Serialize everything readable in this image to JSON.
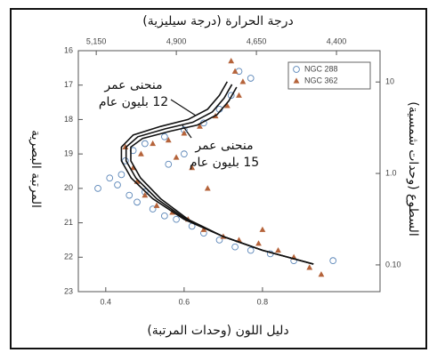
{
  "chart_data": {
    "type": "scatter",
    "title": "درجة الحرارة (درجة سيليزية)",
    "x_label": "دليل اللون (وحدات المرتبة)",
    "y_label": "المرتبة البصرية",
    "y2_label": "السطوع (وحدات شمسية)",
    "xlim": [
      0.33,
      1.1
    ],
    "xticks": [
      0.4,
      0.6,
      0.8
    ],
    "ylim": [
      16,
      23
    ],
    "y_inverted": true,
    "yticks": [
      16,
      17,
      18,
      19,
      20,
      21,
      22,
      23
    ],
    "x2lim": [
      5206,
      4264
    ],
    "x2ticks": [
      {
        "value": 5150,
        "label": "5,150"
      },
      {
        "value": 4900,
        "label": "4,900"
      },
      {
        "value": 4650,
        "label": "4,650"
      },
      {
        "value": 4400,
        "label": "4,400"
      }
    ],
    "y2lim": [
      0.051,
      22
    ],
    "y2_log": true,
    "y2ticks": [
      10,
      {
        "value": 1,
        "label": "1.0"
      },
      {
        "value": 0.1,
        "label": "0.10"
      }
    ],
    "series": [
      {
        "name": "NGC 288",
        "color": "#5b86b8",
        "marker": "circle",
        "x": [
          0.74,
          0.77,
          0.72,
          0.69,
          0.65,
          0.6,
          0.55,
          0.5,
          0.47,
          0.45,
          0.44,
          0.43,
          0.46,
          0.48,
          0.5,
          0.52,
          0.55,
          0.58,
          0.62,
          0.65,
          0.69,
          0.73,
          0.77,
          0.82,
          0.88,
          0.98,
          0.38,
          0.41,
          0.56,
          0.6
        ],
        "values": [
          16.6,
          16.8,
          17.3,
          17.7,
          18.1,
          18.3,
          18.5,
          18.7,
          18.9,
          19.2,
          19.6,
          19.9,
          20.2,
          20.4,
          20.1,
          20.6,
          20.8,
          20.9,
          21.1,
          21.3,
          21.5,
          21.7,
          21.8,
          21.9,
          22.1,
          22.1,
          20.0,
          19.7,
          19.3,
          19.0
        ]
      },
      {
        "name": "NGC 362",
        "color": "#b5633a",
        "marker": "triangle",
        "x": [
          0.72,
          0.73,
          0.75,
          0.74,
          0.71,
          0.68,
          0.64,
          0.6,
          0.56,
          0.52,
          0.49,
          0.47,
          0.48,
          0.5,
          0.53,
          0.57,
          0.61,
          0.65,
          0.7,
          0.74,
          0.79,
          0.84,
          0.88,
          0.92,
          0.95,
          0.62,
          0.66,
          0.58,
          0.45,
          0.8
        ],
        "values": [
          16.3,
          16.6,
          16.9,
          17.3,
          17.6,
          17.9,
          18.2,
          18.4,
          18.6,
          18.7,
          19.0,
          19.4,
          19.8,
          20.2,
          20.5,
          20.7,
          20.9,
          21.2,
          21.4,
          21.5,
          21.6,
          21.8,
          22.0,
          22.3,
          22.5,
          19.4,
          20.0,
          19.1,
          18.8,
          21.2
        ]
      }
    ],
    "curves": [
      {
        "color": "#111111",
        "x": [
          0.93,
          0.8,
          0.7,
          0.6,
          0.52,
          0.465,
          0.44,
          0.44,
          0.47,
          0.54,
          0.61,
          0.66,
          0.69,
          0.71
        ],
        "values": [
          22.2,
          21.8,
          21.4,
          20.9,
          20.3,
          19.7,
          19.2,
          18.8,
          18.45,
          18.2,
          18.0,
          17.7,
          17.3,
          16.9
        ]
      },
      {
        "color": "#111111",
        "x": [
          0.93,
          0.8,
          0.7,
          0.605,
          0.53,
          0.477,
          0.452,
          0.452,
          0.482,
          0.552,
          0.622,
          0.672,
          0.702,
          0.722
        ],
        "values": [
          22.2,
          21.8,
          21.4,
          20.9,
          20.3,
          19.7,
          19.2,
          18.8,
          18.5,
          18.27,
          18.08,
          17.78,
          17.38,
          16.98
        ]
      },
      {
        "color": "#111111",
        "x": [
          0.93,
          0.8,
          0.7,
          0.61,
          0.54,
          0.489,
          0.464,
          0.464,
          0.494,
          0.564,
          0.634,
          0.684,
          0.714,
          0.734
        ],
        "values": [
          22.2,
          21.8,
          21.4,
          20.9,
          20.3,
          19.7,
          19.2,
          18.8,
          18.55,
          18.34,
          18.16,
          17.86,
          17.46,
          17.06
        ]
      }
    ],
    "annotations": [
      [
        "منحنى عمر",
        "12 بليون عام"
      ],
      [
        "منحنى عمر",
        "15 بليون عام"
      ]
    ]
  }
}
